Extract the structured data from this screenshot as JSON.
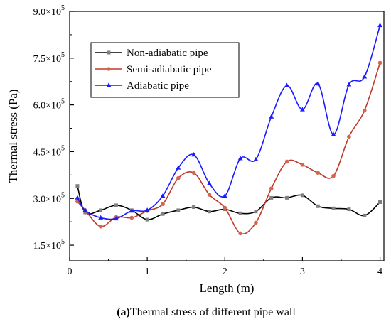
{
  "chart_data": {
    "type": "line",
    "xlabel": "Length (m)",
    "ylabel": "Thermal stress (Pa)",
    "caption_bold": "(a)",
    "caption_text": "Thermal stress of different pipe wall",
    "xlim": [
      0,
      4.05
    ],
    "ylim": [
      100000,
      900000
    ],
    "xticks": [
      {
        "value": 0,
        "label": "0"
      },
      {
        "value": 1,
        "label": "1"
      },
      {
        "value": 2,
        "label": "2"
      },
      {
        "value": 3,
        "label": "3"
      },
      {
        "value": 4,
        "label": "4"
      }
    ],
    "yticks": [
      {
        "value": 150000,
        "mantissa": "1.5",
        "exp": "5"
      },
      {
        "value": 300000,
        "mantissa": "3.0",
        "exp": "5"
      },
      {
        "value": 450000,
        "mantissa": "4.5",
        "exp": "5"
      },
      {
        "value": 600000,
        "mantissa": "6.0",
        "exp": "5"
      },
      {
        "value": 750000,
        "mantissa": "7.5",
        "exp": "5"
      },
      {
        "value": 900000,
        "mantissa": "9.0",
        "exp": "5"
      }
    ],
    "times_symbol": "×10",
    "legend_position": "top-left",
    "series": [
      {
        "name": "Non-adiabatic pipe",
        "color": "#000000",
        "marker_color": "#7f7f7f",
        "marker": "square",
        "x": [
          0.1,
          0.2,
          0.4,
          0.6,
          0.8,
          1.0,
          1.2,
          1.4,
          1.6,
          1.8,
          2.0,
          2.2,
          2.4,
          2.6,
          2.8,
          3.0,
          3.2,
          3.4,
          3.6,
          3.8,
          4.0
        ],
        "values": [
          340000,
          255000,
          262000,
          278000,
          262000,
          232000,
          250000,
          262000,
          272000,
          258000,
          265000,
          252000,
          258000,
          302000,
          302000,
          310000,
          275000,
          268000,
          265000,
          245000,
          288000
        ]
      },
      {
        "name": "Semi-adiabatic pipe",
        "color": "#c0392b",
        "marker_color": "#d7654d",
        "marker": "circle",
        "x": [
          0.1,
          0.2,
          0.4,
          0.6,
          0.8,
          1.0,
          1.2,
          1.4,
          1.6,
          1.8,
          2.0,
          2.2,
          2.4,
          2.6,
          2.8,
          3.0,
          3.2,
          3.4,
          3.6,
          3.8,
          4.0
        ],
        "values": [
          290000,
          262000,
          210000,
          240000,
          238000,
          260000,
          282000,
          365000,
          382000,
          312000,
          270000,
          188000,
          222000,
          332000,
          418000,
          408000,
          382000,
          372000,
          498000,
          582000,
          735000
        ]
      },
      {
        "name": "Adiabatic pipe",
        "color": "#1a1aff",
        "marker_color": "#1a1aff",
        "marker": "triangle",
        "x": [
          0.1,
          0.2,
          0.4,
          0.6,
          0.8,
          1.0,
          1.2,
          1.4,
          1.6,
          1.8,
          2.0,
          2.2,
          2.4,
          2.6,
          2.8,
          3.0,
          3.2,
          3.4,
          3.6,
          3.8,
          4.0
        ],
        "values": [
          302000,
          262000,
          238000,
          235000,
          260000,
          262000,
          308000,
          398000,
          440000,
          348000,
          308000,
          428000,
          425000,
          562000,
          662000,
          585000,
          668000,
          505000,
          665000,
          690000,
          855000
        ]
      }
    ]
  }
}
